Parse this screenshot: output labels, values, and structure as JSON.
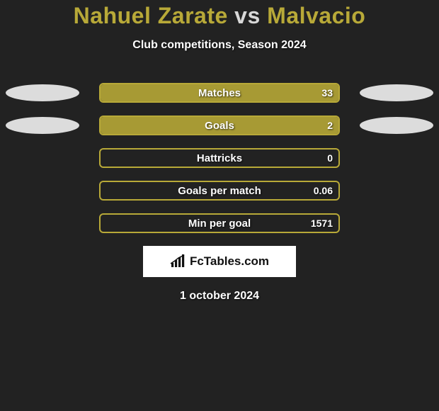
{
  "title": {
    "player1": "Nahuel Zarate",
    "vs": " vs ",
    "player2": "Malvacio",
    "player1_color": "#b8a938",
    "vs_color": "#d8d8d8",
    "player2_color": "#b8a938"
  },
  "subtitle": "Club competitions, Season 2024",
  "rows": [
    {
      "label": "Matches",
      "value": "33",
      "fill_pct": 100,
      "fill_color": "#a79a34",
      "border_color": "#b8a938",
      "left_ellipse": "#dcdcdc",
      "right_ellipse": "#dcdcdc"
    },
    {
      "label": "Goals",
      "value": "2",
      "fill_pct": 100,
      "fill_color": "#a79a34",
      "border_color": "#b8a938",
      "left_ellipse": "#dcdcdc",
      "right_ellipse": "#dcdcdc"
    },
    {
      "label": "Hattricks",
      "value": "0",
      "fill_pct": 0,
      "fill_color": "#a79a34",
      "border_color": "#b8a938",
      "left_ellipse": null,
      "right_ellipse": null
    },
    {
      "label": "Goals per match",
      "value": "0.06",
      "fill_pct": 0,
      "fill_color": "#a79a34",
      "border_color": "#b8a938",
      "left_ellipse": null,
      "right_ellipse": null
    },
    {
      "label": "Min per goal",
      "value": "1571",
      "fill_pct": 0,
      "fill_color": "#a79a34",
      "border_color": "#b8a938",
      "left_ellipse": null,
      "right_ellipse": null
    }
  ],
  "logo": {
    "text": "FcTables.com",
    "icon_color": "#111111",
    "background": "#ffffff"
  },
  "date": "1 october 2024",
  "background_color": "#222222"
}
